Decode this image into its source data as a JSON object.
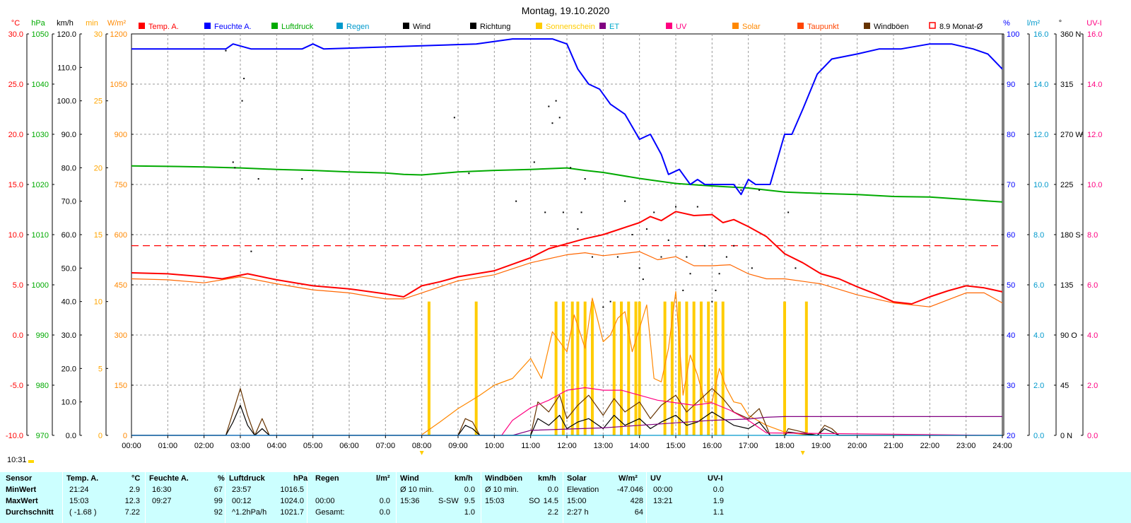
{
  "chart_data": {
    "type": "line",
    "title": "Montag, 19.10.2020",
    "clock": "10:31",
    "x_ticks": [
      "00:00",
      "01:00",
      "02:00",
      "03:00",
      "04:00",
      "05:00",
      "06:00",
      "07:00",
      "08:00",
      "09:00",
      "10:00",
      "11:00",
      "12:00",
      "13:00",
      "14:00",
      "15:00",
      "16:00",
      "17:00",
      "18:00",
      "19:00",
      "20:00",
      "21:00",
      "22:00",
      "23:00",
      "24:00"
    ],
    "xlim": [
      0,
      24
    ],
    "grid": true,
    "legend_position": "top",
    "legend": [
      {
        "label": "Temp. A.",
        "color": "#ff0000",
        "text_color": "#ff0000",
        "style": "fill"
      },
      {
        "label": "Feuchte A.",
        "color": "#0000ff",
        "text_color": "#0000ff",
        "style": "fill"
      },
      {
        "label": "Luftdruck",
        "color": "#00aa00",
        "text_color": "#00aa00",
        "style": "fill"
      },
      {
        "label": "Regen",
        "color": "#0099cc",
        "text_color": "#0099cc",
        "style": "fill"
      },
      {
        "label": "Wind",
        "color": "#000000",
        "text_color": "#000000",
        "style": "fill"
      },
      {
        "label": "Richtung",
        "color": "#000000",
        "text_color": "#000000",
        "style": "fill"
      },
      {
        "label": "Sonnenschein",
        "color": "#ffcc00",
        "text_color": "#ffcc00",
        "style": "fill"
      },
      {
        "label": "ET",
        "color": "#800080",
        "text_color": "#00aacc",
        "style": "fill"
      },
      {
        "label": "UV",
        "color": "#ff0080",
        "text_color": "#ff0080",
        "style": "fill"
      },
      {
        "label": "Solar",
        "color": "#ff8800",
        "text_color": "#ff8800",
        "style": "fill"
      },
      {
        "label": "Taupunkt",
        "color": "#ff4400",
        "text_color": "#ff4400",
        "style": "fill"
      },
      {
        "label": "Windböen",
        "color": "#663300",
        "text_color": "#000000",
        "style": "fill"
      },
      {
        "label": "8.9 Monat-Ø",
        "color": "#ff0000",
        "text_color": "#000000",
        "style": "outline"
      }
    ],
    "left_axes": [
      {
        "unit": "°C",
        "color": "#ff0000",
        "min": -10,
        "max": 30,
        "ticks": [
          "-10.0",
          "-5.0",
          "0.0",
          "5.0",
          "10.0",
          "15.0",
          "20.0",
          "25.0",
          "30.0"
        ]
      },
      {
        "unit": "hPa",
        "color": "#00aa00",
        "min": 970,
        "max": 1050,
        "ticks": [
          "970",
          "980",
          "990",
          "1000",
          "1010",
          "1020",
          "1030",
          "1040",
          "1050"
        ]
      },
      {
        "unit": "km/h",
        "color": "#000000",
        "min": 0,
        "max": 120,
        "ticks": [
          "0.0",
          "10.0",
          "20.0",
          "30.0",
          "40.0",
          "50.0",
          "60.0",
          "70.0",
          "80.0",
          "90.0",
          "100.0",
          "110.0",
          "120.0"
        ]
      },
      {
        "unit": "min",
        "color": "#ffa500",
        "min": 0,
        "max": 30,
        "ticks": [
          "0",
          "5",
          "10",
          "15",
          "20",
          "25",
          "30"
        ]
      },
      {
        "unit": "W/m²",
        "color": "#ff8800",
        "min": 0,
        "max": 1200,
        "ticks": [
          "0",
          "150",
          "300",
          "450",
          "600",
          "750",
          "900",
          "1050",
          "1200"
        ]
      }
    ],
    "right_axes": [
      {
        "unit": "%",
        "color": "#0000ff",
        "min": 20,
        "max": 100,
        "ticks": [
          "20",
          "30",
          "40",
          "50",
          "60",
          "70",
          "80",
          "90",
          "100"
        ]
      },
      {
        "unit": "l/m²",
        "color": "#0099cc",
        "min": 0,
        "max": 16,
        "ticks": [
          "0.0",
          "2.0",
          "4.0",
          "6.0",
          "8.0",
          "10.0",
          "12.0",
          "14.0",
          "16.0"
        ]
      },
      {
        "unit": "°",
        "color": "#000000",
        "min": 0,
        "max": 360,
        "ticks": [
          "0 N",
          "45",
          "90 O",
          "135",
          "180 S",
          "225",
          "270 W",
          "315",
          "360 N"
        ]
      },
      {
        "unit": "UV-I",
        "color": "#ff0080",
        "min": 0,
        "max": 16,
        "ticks": [
          "0.0",
          "2.0",
          "4.0",
          "6.0",
          "8.0",
          "10.0",
          "12.0",
          "14.0",
          "16.0"
        ]
      }
    ],
    "series": [
      {
        "name": "Luftdruck",
        "axis": "hPa",
        "color": "#00aa00",
        "x": [
          0,
          1,
          2,
          3,
          4,
          5,
          6,
          7,
          7.5,
          8,
          9,
          10,
          11,
          12,
          12.5,
          13,
          14,
          15,
          16,
          17,
          18,
          19,
          20,
          21,
          22,
          23,
          24
        ],
        "y": [
          1023.7,
          1023.6,
          1023.5,
          1023.3,
          1023.0,
          1022.8,
          1022.5,
          1022.3,
          1022.0,
          1021.9,
          1022.5,
          1022.8,
          1023.0,
          1023.3,
          1022.8,
          1022.4,
          1021.2,
          1020.2,
          1019.7,
          1019.3,
          1018.5,
          1018.2,
          1018.0,
          1017.6,
          1017.5,
          1017.0,
          1016.5
        ]
      },
      {
        "name": "Feuchte A.",
        "axis": "%",
        "color": "#0000ff",
        "x": [
          0,
          2.6,
          2.8,
          3.3,
          3.6,
          4.7,
          5.0,
          5.3,
          9.5,
          10.5,
          11.6,
          12.0,
          12.3,
          12.6,
          12.9,
          13.2,
          13.6,
          14.0,
          14.3,
          14.6,
          14.8,
          15.1,
          15.4,
          15.6,
          15.8,
          16.0,
          16.3,
          16.6,
          16.8,
          17.0,
          17.2,
          17.6,
          18.0,
          18.2,
          18.5,
          18.9,
          19.3,
          20.0,
          20.6,
          21.2,
          22.0,
          22.6,
          23.2,
          23.6,
          24.0
        ],
        "y": [
          97,
          97,
          98,
          97,
          97,
          97,
          98,
          97,
          98,
          99,
          99,
          98,
          93,
          90,
          89,
          86,
          84,
          79,
          80,
          76,
          72,
          73,
          70,
          71,
          70,
          70,
          70,
          70,
          68,
          71,
          70,
          70,
          80,
          80,
          85,
          92,
          95,
          96,
          97,
          97,
          98,
          98,
          97,
          96,
          93
        ]
      },
      {
        "name": "Temp. A.",
        "axis": "°C",
        "color": "#ff0000",
        "x": [
          0,
          1,
          2,
          2.5,
          3.2,
          4,
          5,
          6,
          7,
          7.5,
          8,
          8.5,
          9,
          10,
          11,
          11.5,
          12,
          12.5,
          13,
          13.5,
          14,
          14.3,
          14.6,
          15,
          15.5,
          16,
          16.3,
          16.6,
          17,
          17.5,
          18,
          18.5,
          19,
          19.5,
          20,
          20.5,
          21,
          21.5,
          22,
          22.5,
          23,
          23.5,
          24
        ],
        "y": [
          6.2,
          6.1,
          5.8,
          5.6,
          6.1,
          5.5,
          4.9,
          4.6,
          4.1,
          3.8,
          4.9,
          5.3,
          5.8,
          6.4,
          7.7,
          8.6,
          9.1,
          9.6,
          10.0,
          10.6,
          11.2,
          11.8,
          11.4,
          12.3,
          11.9,
          12.0,
          11.2,
          11.5,
          10.8,
          9.8,
          8.1,
          7.2,
          6.1,
          5.6,
          4.8,
          4.1,
          3.3,
          3.1,
          3.8,
          4.4,
          4.9,
          4.7,
          4.3
        ]
      },
      {
        "name": "Taupunkt",
        "axis": "°C",
        "color": "#ff6600",
        "x": [
          0,
          1,
          2,
          3,
          4,
          5,
          6,
          7,
          7.5,
          8,
          9,
          10,
          11,
          12,
          12.5,
          13,
          14,
          14.5,
          15,
          15.5,
          16,
          16.5,
          17,
          17.5,
          18,
          19,
          20,
          21,
          22,
          22.5,
          23,
          23.5,
          24
        ],
        "y": [
          5.6,
          5.5,
          5.2,
          5.8,
          5.1,
          4.5,
          4.2,
          3.6,
          3.6,
          4.2,
          5.4,
          6.0,
          7.2,
          8.0,
          8.2,
          7.9,
          8.3,
          7.5,
          7.8,
          6.9,
          6.9,
          7.0,
          6.1,
          5.6,
          5.6,
          5.1,
          4.0,
          3.2,
          2.8,
          3.5,
          4.2,
          4.2,
          3.2
        ]
      },
      {
        "name": "Solar",
        "axis": "W/m²",
        "color": "#ff8800",
        "x": [
          8,
          8.5,
          9,
          9.3,
          9.6,
          10,
          10.5,
          11,
          11.3,
          11.6,
          12,
          12.2,
          12.5,
          12.7,
          13,
          13.2,
          13.4,
          13.6,
          13.8,
          14,
          14.2,
          14.4,
          14.6,
          14.8,
          15,
          15.2,
          15.4,
          15.6,
          15.8,
          16,
          16.2,
          16.4,
          16.6,
          16.8,
          17,
          17.5,
          18,
          18.5,
          19
        ],
        "y": [
          2,
          40,
          80,
          100,
          120,
          150,
          170,
          230,
          170,
          310,
          250,
          360,
          260,
          410,
          280,
          300,
          350,
          370,
          250,
          320,
          390,
          170,
          160,
          260,
          430,
          120,
          240,
          180,
          100,
          100,
          200,
          140,
          100,
          95,
          60,
          30,
          10,
          3,
          0
        ]
      },
      {
        "name": "Wind",
        "axis": "km/h",
        "color": "#000000",
        "x": [
          0,
          2.6,
          2.8,
          3.0,
          3.2,
          3.4,
          3.6,
          3.8,
          9.0,
          9.2,
          9.4,
          9.6,
          11.0,
          11.2,
          11.5,
          11.8,
          12.0,
          12.3,
          12.6,
          13.0,
          13.3,
          13.6,
          14.0,
          14.3,
          14.6,
          15.0,
          15.3,
          15.6,
          16.0,
          16.3,
          16.6,
          17.0,
          17.3,
          17.6,
          18.0,
          18.1,
          18.9,
          19.1,
          19.3,
          19.5,
          24.0
        ],
        "y": [
          0,
          0,
          4,
          9,
          3,
          0,
          2,
          0,
          0,
          3,
          2,
          0,
          0,
          5,
          3,
          6,
          2,
          4,
          5,
          2,
          6,
          3,
          5,
          2,
          4,
          6,
          3,
          4,
          7,
          5,
          3,
          2,
          4,
          0,
          0,
          1,
          0,
          2,
          1,
          0,
          0
        ]
      },
      {
        "name": "Windböen",
        "axis": "km/h",
        "color": "#663300",
        "x": [
          0,
          2.6,
          2.8,
          3.0,
          3.2,
          3.4,
          3.6,
          3.8,
          9.0,
          9.2,
          9.4,
          9.6,
          11.0,
          11.2,
          11.5,
          11.8,
          12.0,
          12.3,
          12.6,
          13.0,
          13.3,
          13.6,
          14.0,
          14.3,
          14.6,
          15.0,
          15.3,
          15.6,
          16.0,
          16.3,
          16.6,
          17.0,
          17.3,
          17.6,
          18.0,
          18.1,
          18.9,
          19.1,
          19.3,
          19.5,
          24.0
        ],
        "y": [
          0,
          0,
          7,
          14,
          6,
          0,
          5,
          0,
          0,
          5,
          4,
          0,
          0,
          10,
          7,
          12,
          5,
          9,
          12,
          6,
          11,
          7,
          10,
          5,
          9,
          12,
          7,
          10,
          14,
          11,
          7,
          5,
          8,
          0,
          0,
          2,
          0,
          3,
          2,
          0,
          0
        ]
      },
      {
        "name": "UV",
        "axis": "UV-I",
        "color": "#ff0080",
        "x": [
          0,
          10.2,
          10.5,
          11.0,
          11.5,
          12.0,
          12.5,
          13.0,
          13.5,
          14.0,
          14.5,
          15.0,
          15.5,
          16.0,
          16.5,
          17.0,
          17.5,
          24
        ],
        "y": [
          0,
          0,
          0.6,
          1.1,
          1.4,
          1.8,
          1.9,
          1.8,
          1.8,
          1.6,
          1.4,
          1.3,
          1.2,
          1.3,
          1.0,
          0.6,
          0.1,
          0
        ]
      },
      {
        "name": "ET",
        "axis": "l/m²",
        "color": "#800080",
        "x": [
          0,
          10.5,
          11,
          12,
          13,
          14,
          15,
          16,
          17,
          17.5,
          18,
          24
        ],
        "y": [
          0,
          0,
          0.2,
          0.25,
          0.3,
          0.4,
          0.5,
          0.6,
          0.65,
          0.72,
          0.75,
          0.75
        ]
      },
      {
        "name": "Regen",
        "axis": "l/m²",
        "color": "#0099cc",
        "x": [
          0,
          24
        ],
        "y": [
          0,
          0
        ]
      }
    ],
    "sunshine_bars": {
      "axis": "min",
      "color": "#ffcc00",
      "x": [
        8.2,
        9.5,
        11.7,
        11.9,
        12.15,
        12.3,
        12.5,
        12.7,
        13.3,
        13.5,
        13.7,
        13.9,
        14.0,
        14.7,
        14.9,
        15.1,
        15.3,
        15.5,
        15.7,
        15.9,
        16.1,
        16.3,
        18.0,
        18.6
      ],
      "y": [
        10,
        10,
        10,
        10,
        10,
        10,
        10,
        10,
        10,
        10,
        10,
        10,
        10,
        10,
        10,
        10,
        10,
        10,
        10,
        10,
        10,
        10,
        10,
        10
      ]
    },
    "direction_points": {
      "axis": "°",
      "color": "#000000",
      "x": [
        2.8,
        2.85,
        3.05,
        3.1,
        3.3,
        3.5,
        2.6,
        4.7,
        8.9,
        9.3,
        11.5,
        11.6,
        11.7,
        11.8,
        11.9,
        12.1,
        12.3,
        12.4,
        12.5,
        12.7,
        13.0,
        13.2,
        13.4,
        13.6,
        13.8,
        14.0,
        14.1,
        14.2,
        14.4,
        14.6,
        14.8,
        15.0,
        15.2,
        15.4,
        15.6,
        15.8,
        16.0,
        16.2,
        16.4,
        16.6,
        16.8,
        17.1,
        17.3,
        18.1,
        18.3,
        11.1,
        11.4,
        10.6,
        15.3,
        16.1
      ],
      "y": [
        245,
        240,
        300,
        320,
        165,
        230,
        345,
        230,
        285,
        235,
        295,
        280,
        300,
        285,
        200,
        240,
        185,
        200,
        230,
        160,
        115,
        120,
        160,
        210,
        180,
        150,
        140,
        185,
        200,
        160,
        175,
        205,
        130,
        145,
        205,
        170,
        120,
        145,
        160,
        170,
        220,
        150,
        220,
        200,
        150,
        245,
        200,
        210,
        160,
        130
      ]
    },
    "monthly_average": {
      "label": "8.9 Monat-Ø",
      "axis": "°C",
      "value": 8.9,
      "color": "#ff0000"
    },
    "marker_times": [
      8,
      18.5
    ]
  },
  "table": {
    "sensor": {
      "head": "Sensor",
      "rows": [
        "MinWert",
        "MaxWert",
        "Durchschnitt"
      ]
    },
    "temp": {
      "head": "Temp. A.",
      "unit": "°C",
      "times": [
        "21:24",
        "15:03",
        "( -1.68 )"
      ],
      "values": [
        "2.9",
        "12.3",
        "7.22"
      ]
    },
    "humidity": {
      "head": "Feuchte A.",
      "unit": "%",
      "times": [
        "16:30",
        "09:27",
        ""
      ],
      "values": [
        "67",
        "99",
        "92"
      ]
    },
    "pressure": {
      "head": "Luftdruck",
      "unit": "hPa",
      "times": [
        "23:57",
        "00:12",
        "^1.2hPa/h"
      ],
      "values": [
        "1016.5",
        "1024.0",
        "1021.7"
      ]
    },
    "rain": {
      "head": "Regen",
      "unit": "l/m²",
      "times": [
        "",
        "00:00",
        "Gesamt:"
      ],
      "values": [
        "",
        "0.0",
        "0.0"
      ]
    },
    "wind": {
      "head": "Wind",
      "unit": "km/h",
      "labels": [
        "Ø 10 min.",
        "15:36",
        ""
      ],
      "dirs": [
        "",
        "S-SW",
        ""
      ],
      "values": [
        "0.0",
        "9.5",
        "1.0"
      ]
    },
    "gusts": {
      "head": "Windböen",
      "unit": "km/h",
      "labels": [
        "Ø 10 min.",
        "15:03",
        ""
      ],
      "dirs": [
        "",
        "SO",
        ""
      ],
      "values": [
        "0.0",
        "14.5",
        "2.2"
      ]
    },
    "solar": {
      "head": "Solar",
      "unit": "W/m²",
      "labels": [
        "Elevation",
        "15:00",
        "2:27 h"
      ],
      "values": [
        "-47.046",
        "428",
        "64"
      ]
    },
    "uv": {
      "head": "UV",
      "unit": "UV-I",
      "times": [
        "00:00",
        "13:21",
        ""
      ],
      "values": [
        "0.0",
        "1.9",
        "1.1"
      ]
    }
  }
}
